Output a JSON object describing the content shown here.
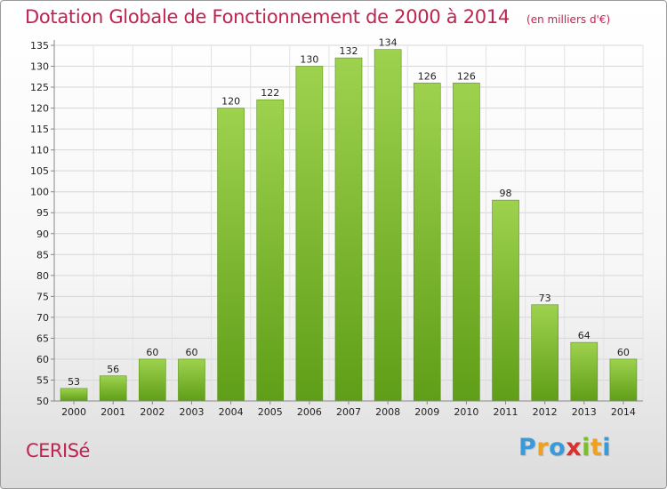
{
  "chart_data": {
    "type": "bar",
    "title": "Dotation Globale de Fonctionnement de 2000 à 2014",
    "subtitle": "(en milliers d'€)",
    "categories": [
      "2000",
      "2001",
      "2002",
      "2003",
      "2004",
      "2005",
      "2006",
      "2007",
      "2008",
      "2009",
      "2010",
      "2011",
      "2012",
      "2013",
      "2014"
    ],
    "values": [
      53,
      56,
      60,
      60,
      120,
      122,
      130,
      132,
      134,
      126,
      126,
      98,
      73,
      64,
      60
    ],
    "ylim": [
      50,
      135
    ],
    "yticks": [
      50,
      55,
      60,
      65,
      70,
      75,
      80,
      85,
      90,
      95,
      100,
      105,
      110,
      115,
      120,
      125,
      130,
      135
    ],
    "grid": true,
    "legend": "none",
    "bar_color_top": "#9ed24e",
    "bar_color_bottom": "#5f9e18",
    "title_color": "#c0234f"
  },
  "commune": {
    "name": "CERISé"
  },
  "brand": {
    "letters": [
      "P",
      "r",
      "o",
      "x",
      "i",
      "t",
      "i"
    ],
    "colors": [
      "#3a9ad9",
      "#f0a020",
      "#3a9ad9",
      "#d9302f",
      "#7cbd2a",
      "#f0a020",
      "#3a9ad9"
    ]
  }
}
